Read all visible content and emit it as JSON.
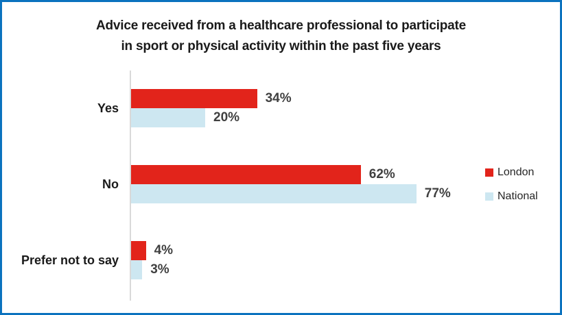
{
  "frame": {
    "border_color": "#0B72BE",
    "background": "#FFFFFF"
  },
  "title": {
    "line1": "Advice received from a healthcare professional to participate",
    "line2": "in sport or physical activity within the past five years"
  },
  "chart_data": {
    "type": "bar",
    "orientation": "horizontal",
    "title": "Advice received from a healthcare professional to participate in sport or physical activity within the past five years",
    "categories": [
      "Yes",
      "No",
      "Prefer not to say"
    ],
    "series": [
      {
        "name": "London",
        "color": "#E2241B",
        "values": [
          34,
          62,
          4
        ],
        "labels": [
          "34%",
          "62%",
          "4%"
        ]
      },
      {
        "name": "National",
        "color": "#CDE7F1",
        "values": [
          20,
          77,
          3
        ],
        "labels": [
          "20%",
          "77%",
          "3%"
        ]
      }
    ],
    "value_suffix": "%",
    "xlim": [
      0,
      80
    ],
    "grid": false,
    "legend_position": "right",
    "axis_line_color": "#D9D9D9",
    "value_label_color": "#404040",
    "category_label_color": "#1A1A1A"
  }
}
